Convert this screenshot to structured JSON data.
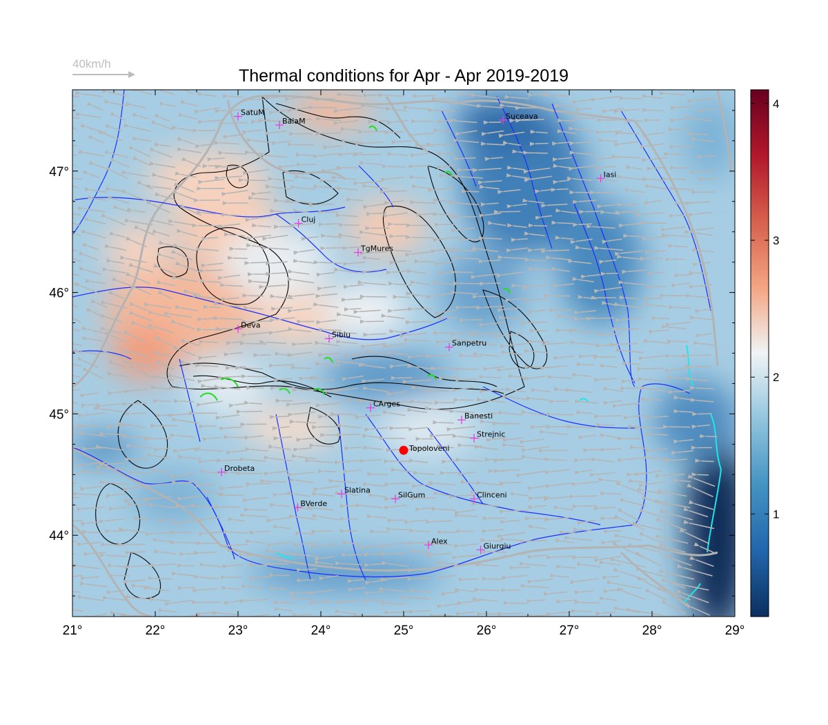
{
  "title": "Thermal conditions for Apr - Apr  2019-2019",
  "wind_legend": {
    "label": "40km/h",
    "color": "#bdbdbd"
  },
  "lon_ticks": [
    "21°",
    "22°",
    "23°",
    "24°",
    "25°",
    "26°",
    "27°",
    "28°",
    "29°"
  ],
  "lat_ticks": [
    "44°",
    "45°",
    "46°",
    "47°"
  ],
  "colorbar": {
    "ticks": [
      "1",
      "2",
      "3",
      "4"
    ],
    "min": 0.25,
    "max": 4.1,
    "colors": [
      "#0b2f5e",
      "#2166ac",
      "#4393c3",
      "#92c5de",
      "#f0f4f6",
      "#f4a582",
      "#d6604d",
      "#b2182b",
      "#67001f"
    ]
  },
  "colors": {
    "field_base": "#a6cde3",
    "river": "#1a2cff",
    "border": "#b3b3b3",
    "contour": "#000000",
    "station_marker": "#e040e0",
    "target_marker": "#ff0000",
    "wind_arrow": "#b5b5b5"
  },
  "cities": [
    {
      "name": "SatuM",
      "lon": 23.0,
      "lat": 47.45
    },
    {
      "name": "BaiaM",
      "lon": 23.5,
      "lat": 47.38
    },
    {
      "name": "Suceava",
      "lon": 26.2,
      "lat": 47.42
    },
    {
      "name": "Iasi",
      "lon": 27.38,
      "lat": 46.94
    },
    {
      "name": "Cluj",
      "lon": 23.73,
      "lat": 46.57
    },
    {
      "name": "TgMures",
      "lon": 24.45,
      "lat": 46.33
    },
    {
      "name": "Deva",
      "lon": 23.0,
      "lat": 45.7
    },
    {
      "name": "Sibiu",
      "lon": 24.1,
      "lat": 45.62
    },
    {
      "name": "Sanpetru",
      "lon": 25.55,
      "lat": 45.55
    },
    {
      "name": "CArges",
      "lon": 24.6,
      "lat": 45.05
    },
    {
      "name": "Banesti",
      "lon": 25.7,
      "lat": 44.95
    },
    {
      "name": "Strejnic",
      "lon": 25.85,
      "lat": 44.8
    },
    {
      "name": "Drobeta",
      "lon": 22.8,
      "lat": 44.52
    },
    {
      "name": "Slatina",
      "lon": 24.25,
      "lat": 44.34
    },
    {
      "name": "SilGum",
      "lon": 24.9,
      "lat": 44.3
    },
    {
      "name": "Clinceni",
      "lon": 25.85,
      "lat": 44.3
    },
    {
      "name": "BVerde",
      "lon": 23.72,
      "lat": 44.23
    },
    {
      "name": "Alex",
      "lon": 25.3,
      "lat": 43.92
    },
    {
      "name": "Giurgiu",
      "lon": 25.93,
      "lat": 43.88
    }
  ],
  "target": {
    "name": "Topoloveni",
    "lon": 25.0,
    "lat": 44.7
  }
}
